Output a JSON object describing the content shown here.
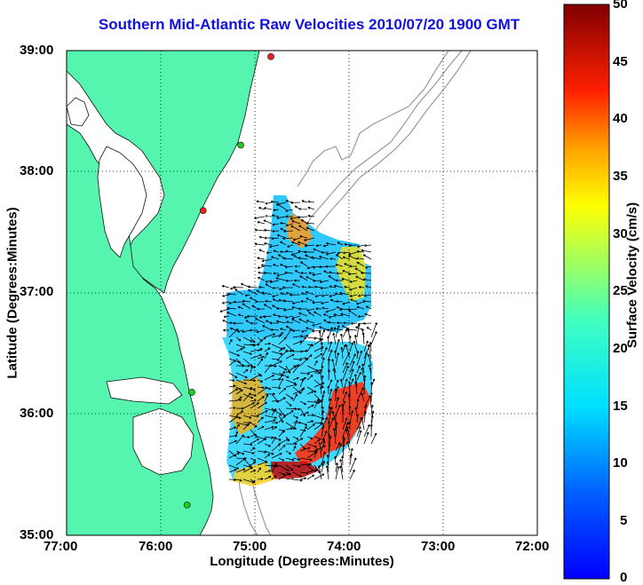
{
  "title": "Southern Mid-Atlantic Raw Velocities 2010/07/20 1900 GMT",
  "xaxis": {
    "label": "Longitude (Degrees:Minutes)",
    "ticks": [
      "77:00",
      "76:00",
      "75:00",
      "74:00",
      "73:00",
      "72:00"
    ]
  },
  "yaxis": {
    "label": "Latitude (Degrees:Minutes)",
    "ticks": [
      "39:00",
      "38:00",
      "37:00",
      "36:00",
      "35:00"
    ]
  },
  "colorbar": {
    "label": "Surface Velocity (cm/s)",
    "ticks": [
      "50",
      "45",
      "40",
      "35",
      "30",
      "25",
      "20",
      "15",
      "10",
      "5",
      "0"
    ],
    "range": [
      0,
      50
    ],
    "colormap": "jet"
  },
  "colors": {
    "land": "#55f5b0",
    "title": "#1010e0",
    "bathymetry": "#999999",
    "station_active": "#22cc22",
    "station_inactive": "#ee2222"
  },
  "stations": [
    {
      "status": "inactive",
      "lon": -74.83,
      "lat": 38.95
    },
    {
      "status": "active",
      "lon": -75.15,
      "lat": 38.22
    },
    {
      "status": "inactive",
      "lon": -75.55,
      "lat": 37.68
    },
    {
      "status": "active",
      "lon": -75.67,
      "lat": 36.18
    },
    {
      "status": "active",
      "lon": -75.72,
      "lat": 35.25
    }
  ]
}
